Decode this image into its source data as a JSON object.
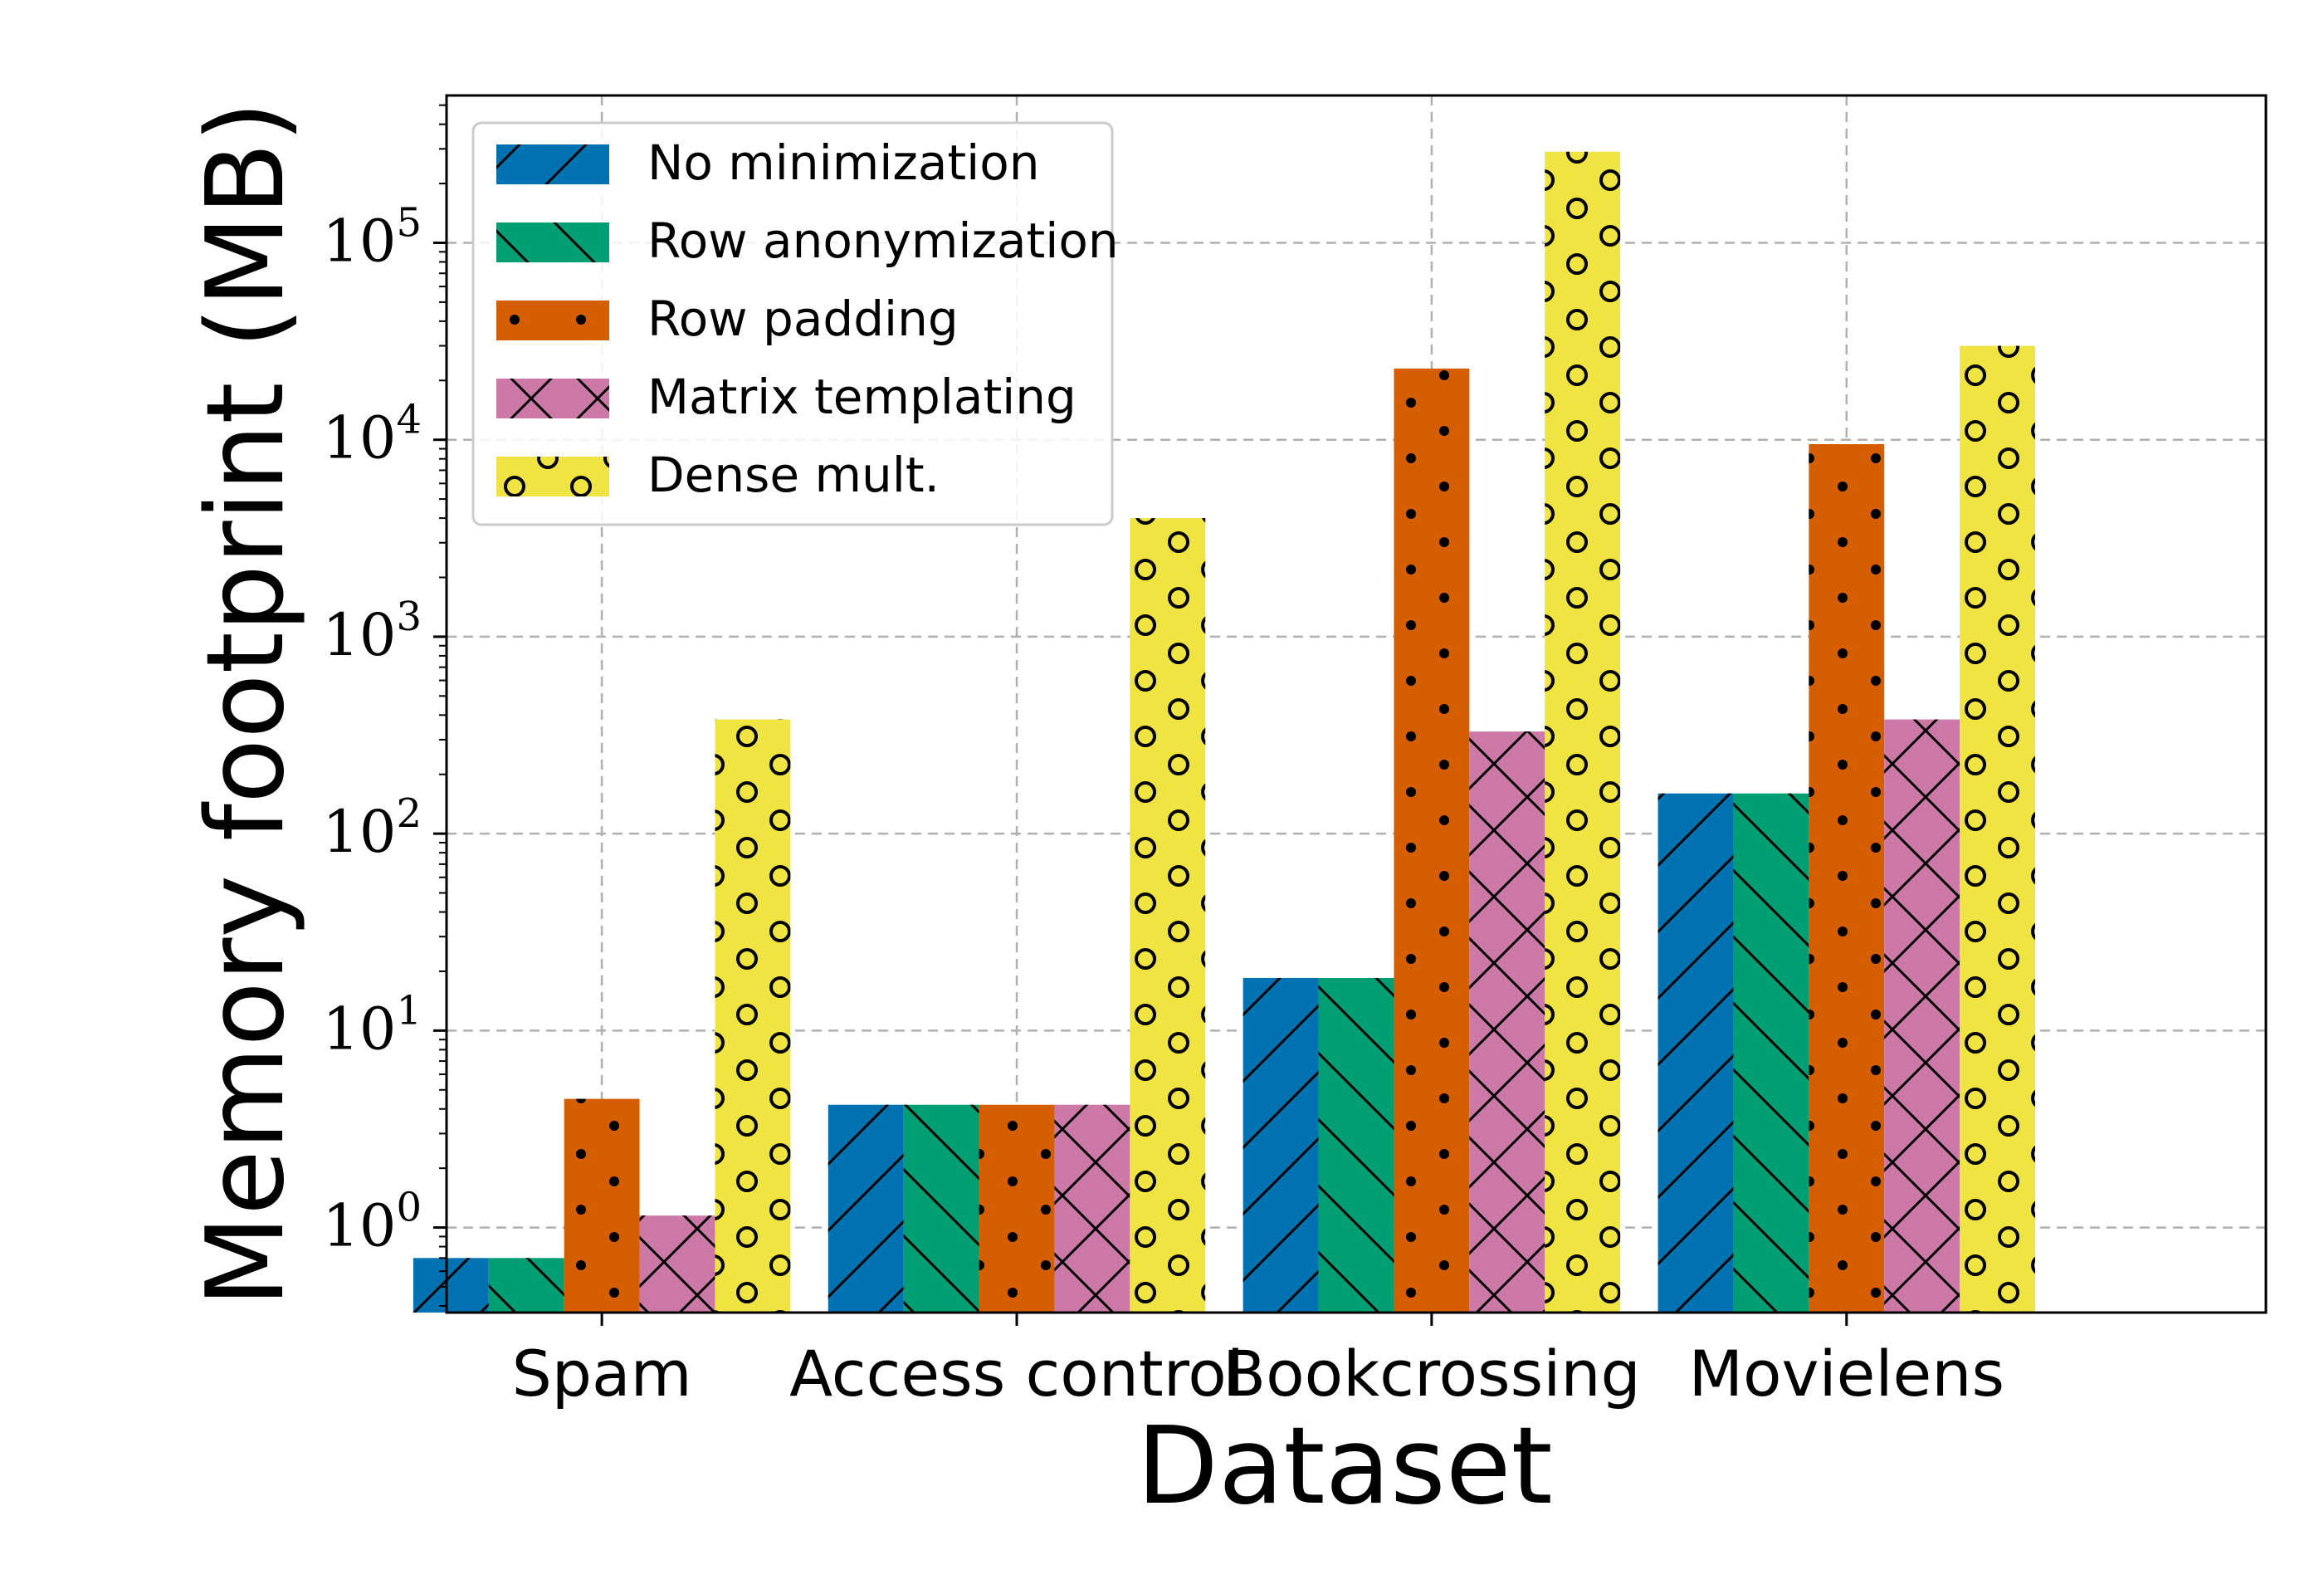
{
  "chart_data": {
    "type": "bar",
    "scale": "log",
    "xlabel": "Dataset",
    "ylabel": "Memory footprint (MB)",
    "ylim": [
      0.37,
      560000
    ],
    "categories": [
      "Spam",
      "Access control",
      "Bookcrossing",
      "Movielens"
    ],
    "series": [
      {
        "name": "No minimization",
        "color": "#0072b2",
        "hatch": "forward-diagonal",
        "values": [
          0.7,
          4.2,
          18.5,
          160
        ]
      },
      {
        "name": "Row anonymization",
        "color": "#009e73",
        "hatch": "back-diagonal",
        "values": [
          0.7,
          4.2,
          18.5,
          160
        ]
      },
      {
        "name": "Row padding",
        "color": "#d55e00",
        "hatch": "dots",
        "values": [
          4.5,
          4.2,
          23000,
          9500
        ]
      },
      {
        "name": "Matrix templating",
        "color": "#cc79a7",
        "hatch": "cross",
        "values": [
          1.15,
          4.2,
          330,
          380
        ]
      },
      {
        "name": "Dense mult.",
        "color": "#f0e442",
        "hatch": "circles",
        "values": [
          380,
          4000,
          290000,
          30000
        ]
      }
    ],
    "yticks": [
      {
        "value": 1,
        "base": "10",
        "exp": "0"
      },
      {
        "value": 10,
        "base": "10",
        "exp": "1"
      },
      {
        "value": 100,
        "base": "10",
        "exp": "2"
      },
      {
        "value": 1000,
        "base": "10",
        "exp": "3"
      },
      {
        "value": 10000,
        "base": "10",
        "exp": "4"
      },
      {
        "value": 100000,
        "base": "10",
        "exp": "5"
      }
    ],
    "grid": true,
    "legend": "top-left"
  }
}
